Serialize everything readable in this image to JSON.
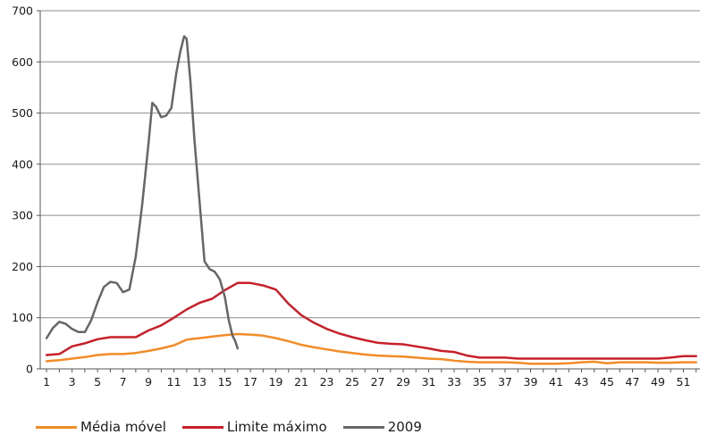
{
  "chart_data": {
    "type": "line",
    "title": "",
    "xlabel": "",
    "ylabel": "",
    "ylim": [
      0,
      700
    ],
    "xlim": [
      1,
      52
    ],
    "y_ticks": [
      0,
      100,
      200,
      300,
      400,
      500,
      600,
      700
    ],
    "x_ticks": [
      1,
      3,
      5,
      7,
      9,
      11,
      13,
      15,
      17,
      19,
      21,
      23,
      25,
      27,
      29,
      31,
      33,
      35,
      37,
      39,
      41,
      43,
      45,
      47,
      49,
      51
    ],
    "x_categories": [
      1,
      2,
      3,
      4,
      5,
      6,
      7,
      8,
      9,
      10,
      11,
      12,
      13,
      14,
      15,
      16,
      17,
      18,
      19,
      20,
      21,
      22,
      23,
      24,
      25,
      26,
      27,
      28,
      29,
      30,
      31,
      32,
      33,
      34,
      35,
      36,
      37,
      38,
      39,
      40,
      41,
      42,
      43,
      44,
      45,
      46,
      47,
      48,
      49,
      50,
      51,
      52
    ],
    "grid": "horizontal",
    "legend_position": "bottom-left",
    "series": [
      {
        "name": "Média móvel",
        "color": "#f28c28",
        "x": [
          1,
          2,
          3,
          4,
          5,
          6,
          7,
          8,
          9,
          10,
          11,
          12,
          13,
          14,
          15,
          16,
          17,
          18,
          19,
          20,
          21,
          22,
          23,
          24,
          25,
          26,
          27,
          28,
          29,
          30,
          31,
          32,
          33,
          34,
          35,
          36,
          37,
          38,
          39,
          40,
          41,
          42,
          43,
          44,
          45,
          46,
          47,
          48,
          49,
          50,
          51,
          52
        ],
        "values": [
          15,
          17,
          20,
          23,
          27,
          29,
          29,
          31,
          35,
          40,
          46,
          57,
          60,
          63,
          66,
          68,
          67,
          65,
          60,
          54,
          47,
          42,
          38,
          34,
          31,
          28,
          26,
          25,
          24,
          22,
          20,
          19,
          16,
          14,
          13,
          13,
          13,
          12,
          10,
          10,
          10,
          11,
          13,
          14,
          11,
          13,
          13,
          13,
          12,
          12,
          13,
          13
        ]
      },
      {
        "name": "Limite máximo",
        "color": "#c8202a",
        "x": [
          1,
          2,
          3,
          4,
          5,
          6,
          7,
          8,
          9,
          10,
          11,
          12,
          13,
          14,
          15,
          16,
          17,
          18,
          19,
          20,
          21,
          22,
          23,
          24,
          25,
          26,
          27,
          28,
          29,
          30,
          31,
          32,
          33,
          34,
          35,
          36,
          37,
          38,
          39,
          40,
          41,
          42,
          43,
          44,
          45,
          46,
          47,
          48,
          49,
          50,
          51,
          52
        ],
        "values": [
          27,
          29,
          44,
          50,
          58,
          62,
          62,
          62,
          75,
          85,
          100,
          116,
          129,
          137,
          154,
          168,
          168,
          163,
          155,
          127,
          105,
          90,
          78,
          69,
          62,
          56,
          51,
          49,
          48,
          44,
          40,
          35,
          33,
          26,
          22,
          22,
          22,
          20,
          20,
          20,
          20,
          20,
          20,
          20,
          20,
          20,
          20,
          20,
          20,
          22,
          25,
          25
        ]
      },
      {
        "name": "2009",
        "color": "#666666",
        "x": [
          1,
          1.5,
          2,
          2.5,
          3,
          3.5,
          4,
          4.5,
          5,
          5.5,
          6,
          6.5,
          7,
          7.5,
          8,
          8.5,
          9,
          9.3,
          9.6,
          10,
          10.4,
          10.8,
          11.2,
          11.5,
          11.8,
          12,
          12.3,
          12.6,
          13,
          13.4,
          13.8,
          14.2,
          14.6,
          15,
          15.3,
          15.6,
          15.8,
          16
        ],
        "values": [
          60,
          80,
          92,
          88,
          78,
          72,
          72,
          95,
          130,
          160,
          170,
          168,
          150,
          155,
          220,
          320,
          440,
          520,
          512,
          492,
          495,
          510,
          580,
          620,
          650,
          645,
          560,
          450,
          330,
          210,
          195,
          190,
          175,
          140,
          95,
          65,
          55,
          40
        ]
      }
    ]
  }
}
